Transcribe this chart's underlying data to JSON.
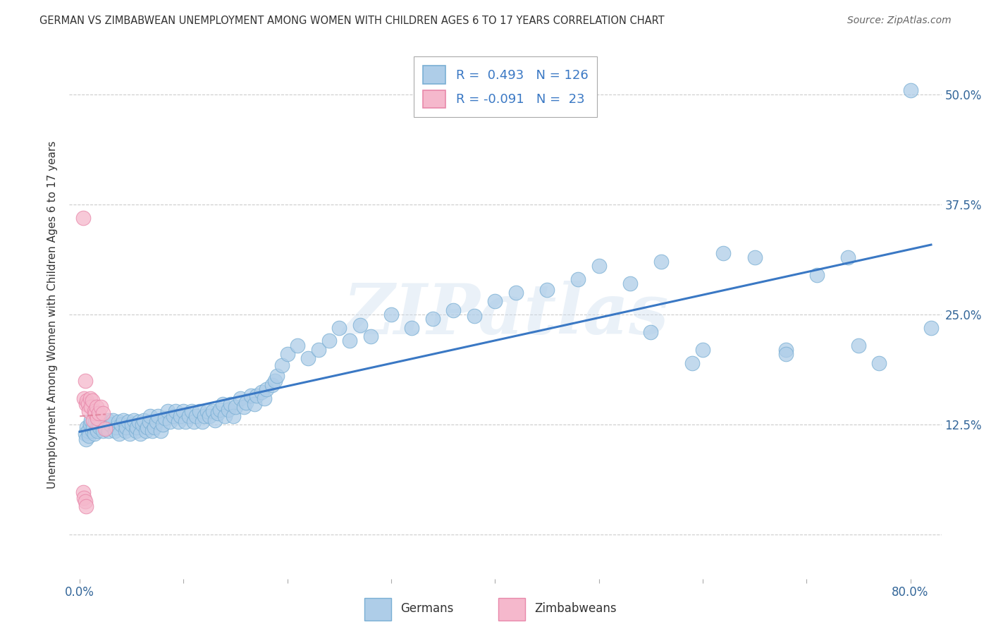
{
  "title": "GERMAN VS ZIMBABWEAN UNEMPLOYMENT AMONG WOMEN WITH CHILDREN AGES 6 TO 17 YEARS CORRELATION CHART",
  "source": "Source: ZipAtlas.com",
  "ylabel": "Unemployment Among Women with Children Ages 6 to 17 years",
  "x_tick_positions": [
    0.0,
    0.1,
    0.2,
    0.3,
    0.4,
    0.5,
    0.6,
    0.7,
    0.8
  ],
  "x_tick_labels": [
    "0.0%",
    "",
    "",
    "",
    "",
    "",
    "",
    "",
    "80.0%"
  ],
  "y_tick_positions": [
    0.0,
    0.125,
    0.25,
    0.375,
    0.5
  ],
  "y_tick_labels": [
    "",
    "12.5%",
    "25.0%",
    "37.5%",
    "50.0%"
  ],
  "german_R": 0.493,
  "german_N": 126,
  "zimbabwean_R": -0.091,
  "zimbabwean_N": 23,
  "german_color": "#aecde8",
  "german_edge_color": "#7aafd4",
  "zimbabwean_color": "#f5b8cc",
  "zimbabwean_edge_color": "#e888aa",
  "trend_german_color": "#3a78c4",
  "trend_zimbabwean_color": "#e08098",
  "watermark_text": "ZIPatlas",
  "background_color": "#ffffff",
  "legend_label_german": "Germans",
  "legend_label_zimbabwean": "Zimbabweans",
  "xlim": [
    -0.01,
    0.83
  ],
  "ylim": [
    -0.05,
    0.55
  ],
  "german_x": [
    0.005,
    0.006,
    0.007,
    0.008,
    0.009,
    0.01,
    0.011,
    0.012,
    0.013,
    0.014,
    0.015,
    0.016,
    0.017,
    0.018,
    0.019,
    0.02,
    0.022,
    0.024,
    0.025,
    0.027,
    0.028,
    0.03,
    0.032,
    0.034,
    0.035,
    0.037,
    0.038,
    0.04,
    0.042,
    0.044,
    0.045,
    0.047,
    0.048,
    0.05,
    0.052,
    0.054,
    0.055,
    0.057,
    0.058,
    0.06,
    0.062,
    0.064,
    0.065,
    0.067,
    0.068,
    0.07,
    0.072,
    0.074,
    0.075,
    0.078,
    0.08,
    0.082,
    0.085,
    0.087,
    0.09,
    0.092,
    0.095,
    0.097,
    0.1,
    0.102,
    0.105,
    0.108,
    0.11,
    0.112,
    0.115,
    0.118,
    0.12,
    0.123,
    0.125,
    0.128,
    0.13,
    0.133,
    0.135,
    0.138,
    0.14,
    0.143,
    0.145,
    0.148,
    0.15,
    0.155,
    0.158,
    0.16,
    0.165,
    0.168,
    0.17,
    0.175,
    0.178,
    0.18,
    0.185,
    0.188,
    0.19,
    0.195,
    0.2,
    0.21,
    0.22,
    0.23,
    0.24,
    0.25,
    0.26,
    0.27,
    0.28,
    0.3,
    0.32,
    0.34,
    0.36,
    0.38,
    0.4,
    0.42,
    0.45,
    0.48,
    0.5,
    0.53,
    0.56,
    0.59,
    0.62,
    0.65,
    0.68,
    0.71,
    0.74,
    0.77,
    0.8,
    0.82,
    0.75,
    0.68,
    0.6,
    0.55
  ],
  "german_y": [
    0.115,
    0.108,
    0.122,
    0.118,
    0.112,
    0.125,
    0.13,
    0.118,
    0.122,
    0.115,
    0.128,
    0.12,
    0.118,
    0.125,
    0.122,
    0.13,
    0.118,
    0.125,
    0.122,
    0.13,
    0.118,
    0.125,
    0.13,
    0.118,
    0.122,
    0.128,
    0.115,
    0.125,
    0.13,
    0.118,
    0.122,
    0.128,
    0.115,
    0.125,
    0.13,
    0.118,
    0.122,
    0.128,
    0.115,
    0.125,
    0.13,
    0.118,
    0.122,
    0.128,
    0.135,
    0.118,
    0.122,
    0.128,
    0.135,
    0.118,
    0.125,
    0.132,
    0.14,
    0.128,
    0.135,
    0.14,
    0.128,
    0.135,
    0.14,
    0.128,
    0.135,
    0.14,
    0.128,
    0.135,
    0.14,
    0.128,
    0.135,
    0.14,
    0.135,
    0.14,
    0.13,
    0.138,
    0.142,
    0.148,
    0.135,
    0.142,
    0.148,
    0.135,
    0.145,
    0.155,
    0.145,
    0.15,
    0.158,
    0.148,
    0.158,
    0.162,
    0.155,
    0.165,
    0.17,
    0.175,
    0.18,
    0.192,
    0.205,
    0.215,
    0.2,
    0.21,
    0.22,
    0.235,
    0.22,
    0.238,
    0.225,
    0.25,
    0.235,
    0.245,
    0.255,
    0.248,
    0.265,
    0.275,
    0.278,
    0.29,
    0.305,
    0.285,
    0.31,
    0.195,
    0.32,
    0.315,
    0.21,
    0.295,
    0.315,
    0.195,
    0.505,
    0.235,
    0.215,
    0.205,
    0.21,
    0.23
  ],
  "zimbabwean_x": [
    0.003,
    0.004,
    0.005,
    0.006,
    0.007,
    0.008,
    0.009,
    0.01,
    0.011,
    0.012,
    0.013,
    0.014,
    0.015,
    0.016,
    0.017,
    0.018,
    0.02,
    0.022,
    0.024,
    0.003,
    0.004,
    0.005,
    0.006
  ],
  "zimbabwean_y": [
    0.36,
    0.155,
    0.175,
    0.148,
    0.152,
    0.148,
    0.14,
    0.155,
    0.145,
    0.152,
    0.13,
    0.14,
    0.138,
    0.145,
    0.132,
    0.138,
    0.145,
    0.138,
    0.12,
    0.048,
    0.042,
    0.038,
    0.032
  ]
}
